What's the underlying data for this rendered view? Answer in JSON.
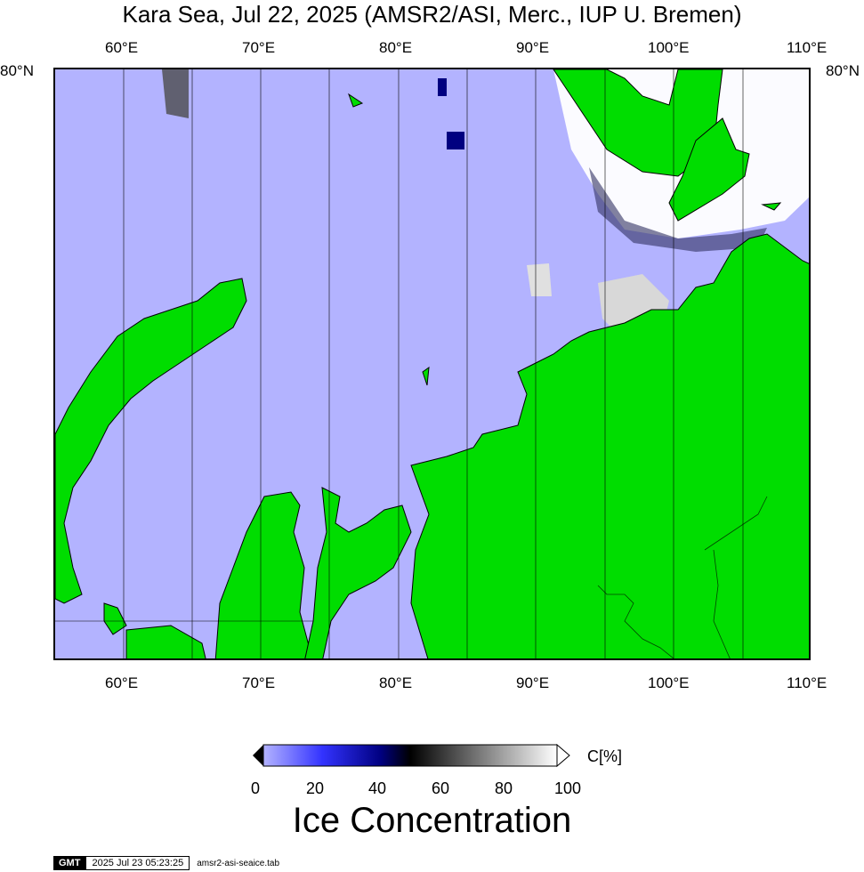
{
  "title": "Kara Sea, Jul 22, 2025 (AMSR2/ASI, Merc., IUP U. Bremen)",
  "map": {
    "lon_labels_top": [
      "60°E",
      "70°E",
      "80°E",
      "90°E",
      "100°E",
      "110°E"
    ],
    "lon_labels_bottom": [
      "60°E",
      "70°E",
      "80°E",
      "90°E",
      "100°E",
      "110°E"
    ],
    "lat_label_left": "80°N",
    "lat_label_right": "80°N",
    "colors": {
      "water": "#b3b3ff",
      "land": "#00dd00",
      "ice_high": "#ffffff",
      "ice_mid": "#808080",
      "ice_low": "#000080"
    }
  },
  "colorbar": {
    "unit": "C[%]",
    "ticks": [
      "0",
      "20",
      "40",
      "60",
      "80",
      "100"
    ],
    "title": "Ice Concentration",
    "stops": [
      "#b3b3ff",
      "#3333ff",
      "#000080",
      "#000000",
      "#808080",
      "#ffffff"
    ]
  },
  "footer": {
    "logo": "GMT",
    "timestamp": "2025 Jul 23 05:23:25",
    "filename": "amsr2-asi-seaice.tab"
  }
}
